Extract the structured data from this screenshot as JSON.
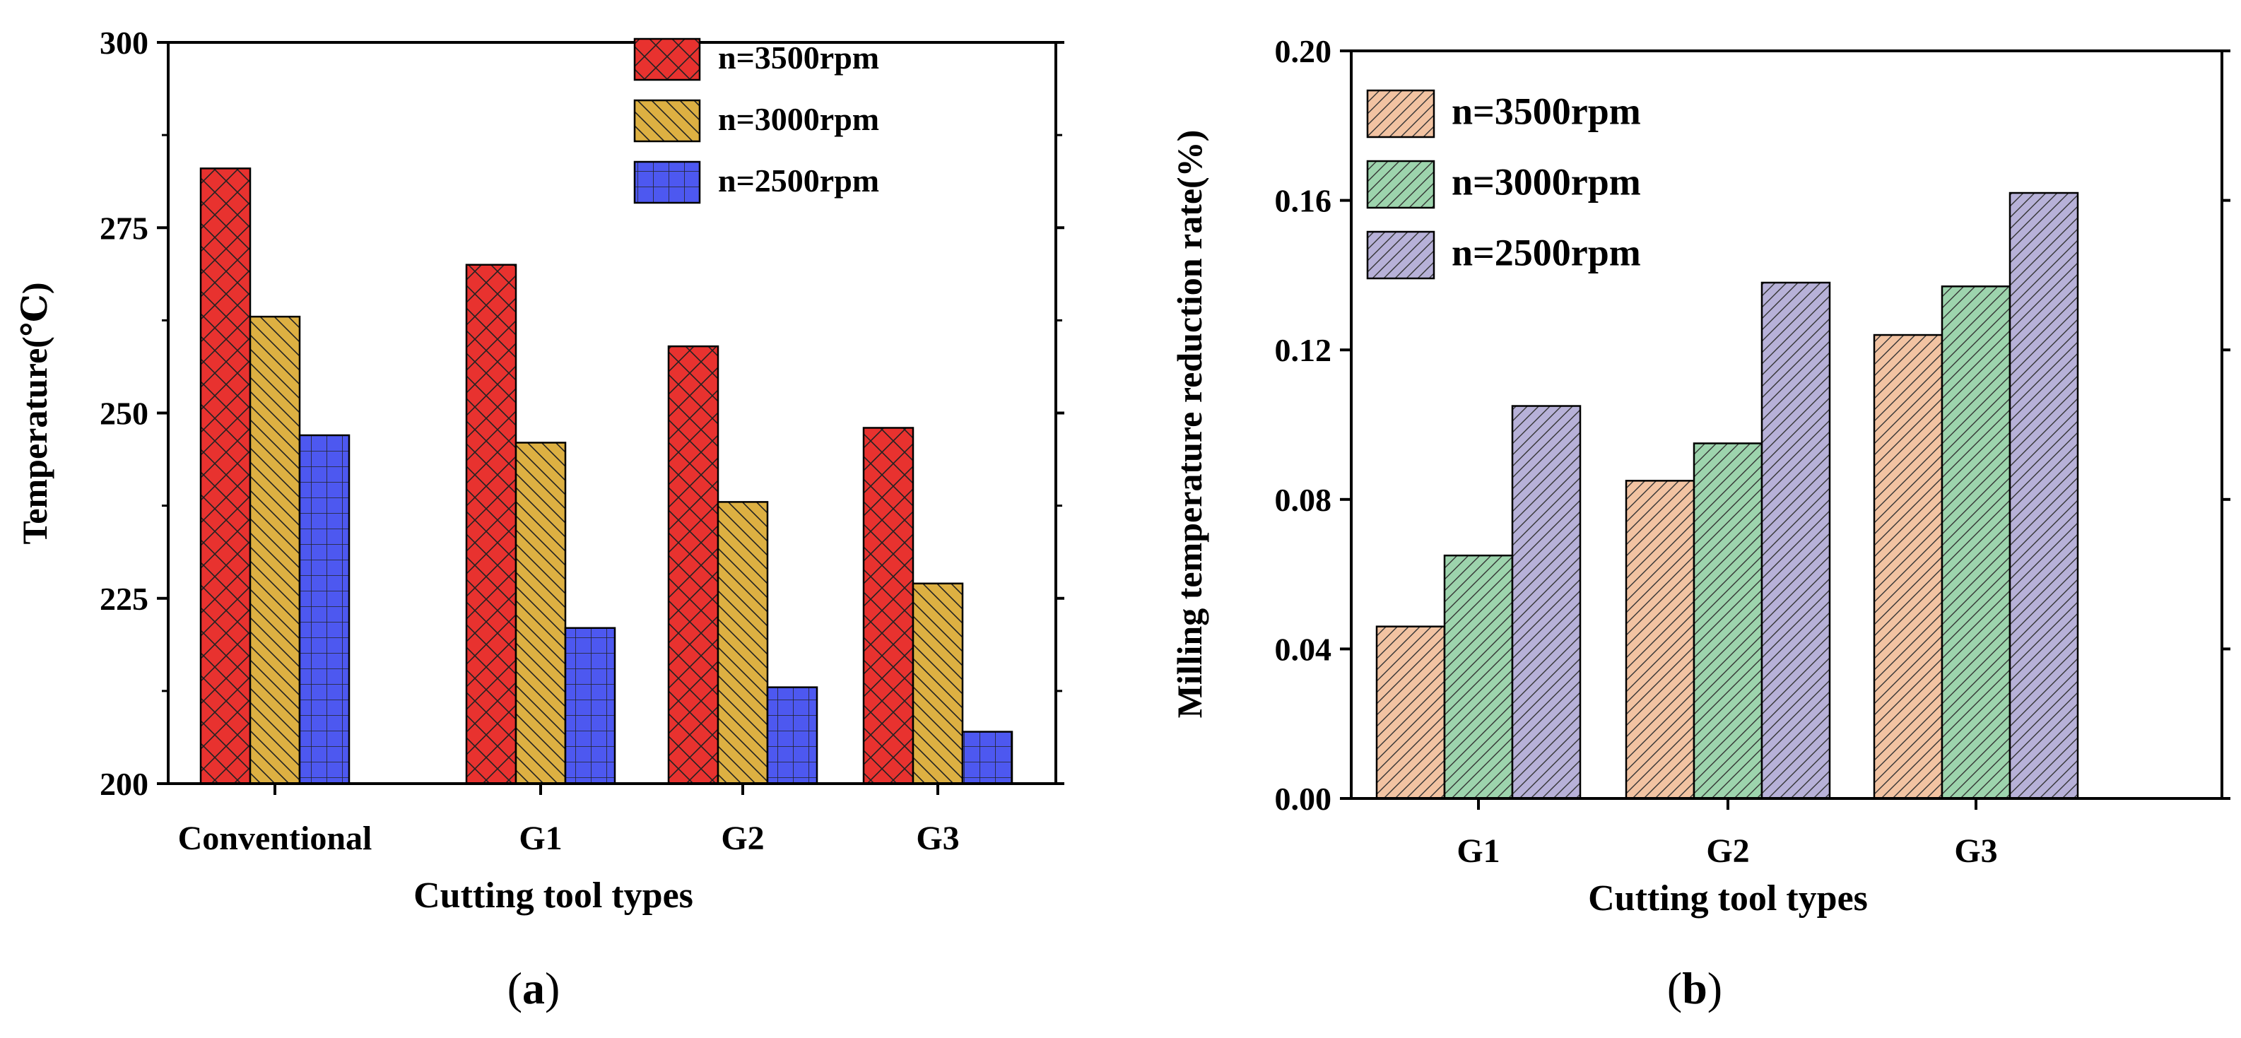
{
  "chart_data": [
    {
      "panel_label": "(a)",
      "panel_letter": "a",
      "type": "bar",
      "title": "",
      "xlabel": "Cutting tool types",
      "ylabel": "Temperature(℃)",
      "ylim": [
        200,
        300
      ],
      "yticks": [
        200,
        225,
        250,
        275,
        300
      ],
      "ytick_labels": [
        "200",
        "225",
        "250",
        "275",
        "300"
      ],
      "categories": [
        "Conventional",
        "G1",
        "G2",
        "G3"
      ],
      "legend_position": "top-right",
      "series": [
        {
          "name": "n=3500rpm",
          "color": "#e8322f",
          "pattern": "crosshatch",
          "values": [
            283,
            270,
            259,
            248
          ]
        },
        {
          "name": "n=3000rpm",
          "color": "#ddb042",
          "pattern": "backslash",
          "values": [
            263,
            246,
            238,
            227
          ]
        },
        {
          "name": "n=2500rpm",
          "color": "#4d58f0",
          "pattern": "grid",
          "values": [
            247,
            221,
            213,
            207
          ]
        }
      ]
    },
    {
      "panel_label": "(b)",
      "panel_letter": "b",
      "type": "bar",
      "title": "",
      "xlabel": "Cutting tool types",
      "ylabel": "Milling temperature reduction rate(%)",
      "ylim": [
        0,
        0.2
      ],
      "yticks": [
        0,
        0.04,
        0.08,
        0.12,
        0.16,
        0.2
      ],
      "ytick_labels": [
        "0.00",
        "0.04",
        "0.08",
        "0.12",
        "0.16",
        "0.20"
      ],
      "categories": [
        "G1",
        "G2",
        "G3"
      ],
      "legend_position": "top-left",
      "series": [
        {
          "name": "n=3500rpm",
          "color": "#f2c3a2",
          "pattern": "slash",
          "values": [
            0.046,
            0.085,
            0.124
          ]
        },
        {
          "name": "n=3000rpm",
          "color": "#9dd4ad",
          "pattern": "slash",
          "values": [
            0.065,
            0.095,
            0.137
          ]
        },
        {
          "name": "n=2500rpm",
          "color": "#b7b1d8",
          "pattern": "slash",
          "values": [
            0.105,
            0.138,
            0.162
          ]
        }
      ]
    }
  ]
}
